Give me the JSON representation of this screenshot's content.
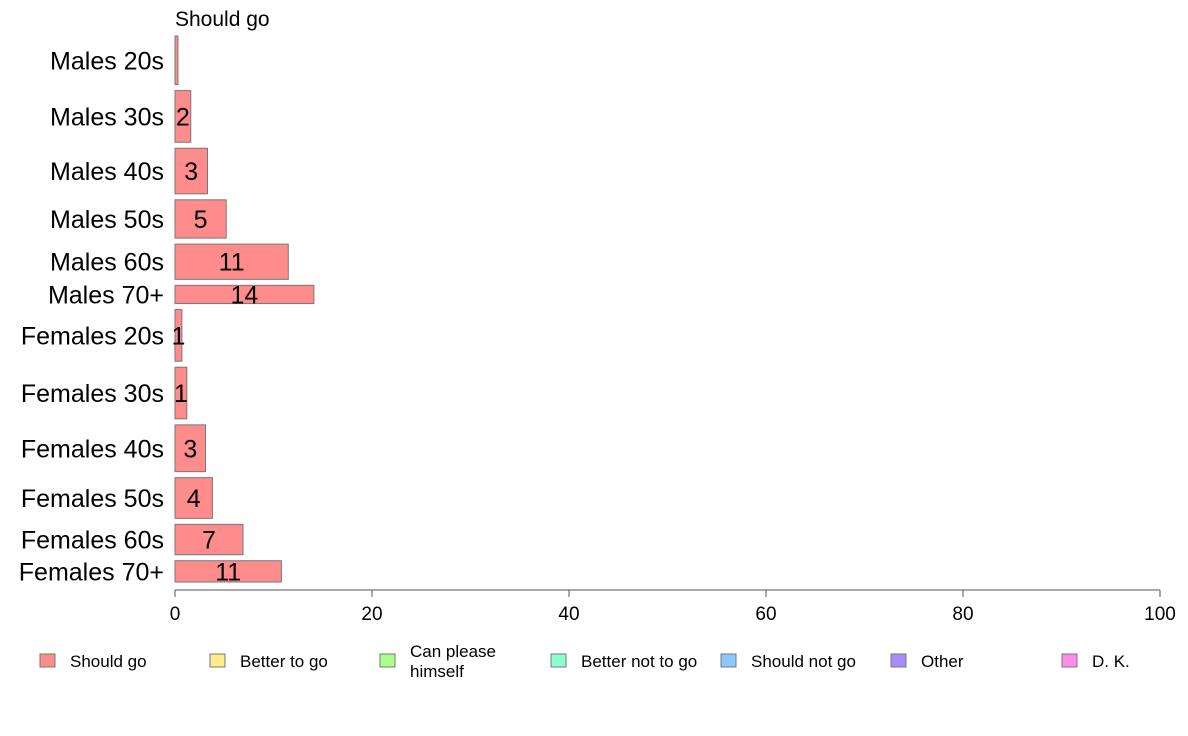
{
  "chart_data": {
    "type": "bar",
    "orientation": "horizontal",
    "stacked": true,
    "panel_title": "Should go",
    "categories": [
      "Males 20s",
      "Males 30s",
      "Males 40s",
      "Males 50s",
      "Males 60s",
      "Males 70+",
      "Females 20s",
      "Females 30s",
      "Females 40s",
      "Females 50s",
      "Females 60s",
      "Females 70+"
    ],
    "bar_weights": [
      80,
      85,
      75,
      63,
      58,
      30,
      85,
      85,
      77,
      67,
      50,
      35
    ],
    "series": [
      {
        "name": "Should go",
        "color": "#ff8c8c",
        "values": [
          0.3,
          1.6,
          3.3,
          5.2,
          11.5,
          14.1,
          0.7,
          1.2,
          3.1,
          3.8,
          6.9,
          10.8
        ],
        "labels": [
          "",
          "2",
          "3",
          "5",
          "11",
          "14",
          "1",
          "1",
          "3",
          "4",
          "7",
          "11"
        ]
      }
    ],
    "xlim": [
      0,
      100
    ],
    "xticks": [
      "0",
      "20",
      "40",
      "60",
      "80",
      "100"
    ],
    "grid": false,
    "legend_position": "bottom",
    "legend": [
      {
        "label": "Should go",
        "color": "#ff8c8c"
      },
      {
        "label": "Better to go",
        "color": "#ffec8c"
      },
      {
        "label": "Can please himself",
        "lines": [
          "Can please",
          "himself"
        ],
        "color": "#a8ff8c"
      },
      {
        "label": "Better not to go",
        "color": "#8cffce"
      },
      {
        "label": "Should not go",
        "color": "#8cc8ff"
      },
      {
        "label": "Other",
        "color": "#a88cff"
      },
      {
        "label": "D. K.",
        "color": "#ff8cec"
      }
    ]
  }
}
